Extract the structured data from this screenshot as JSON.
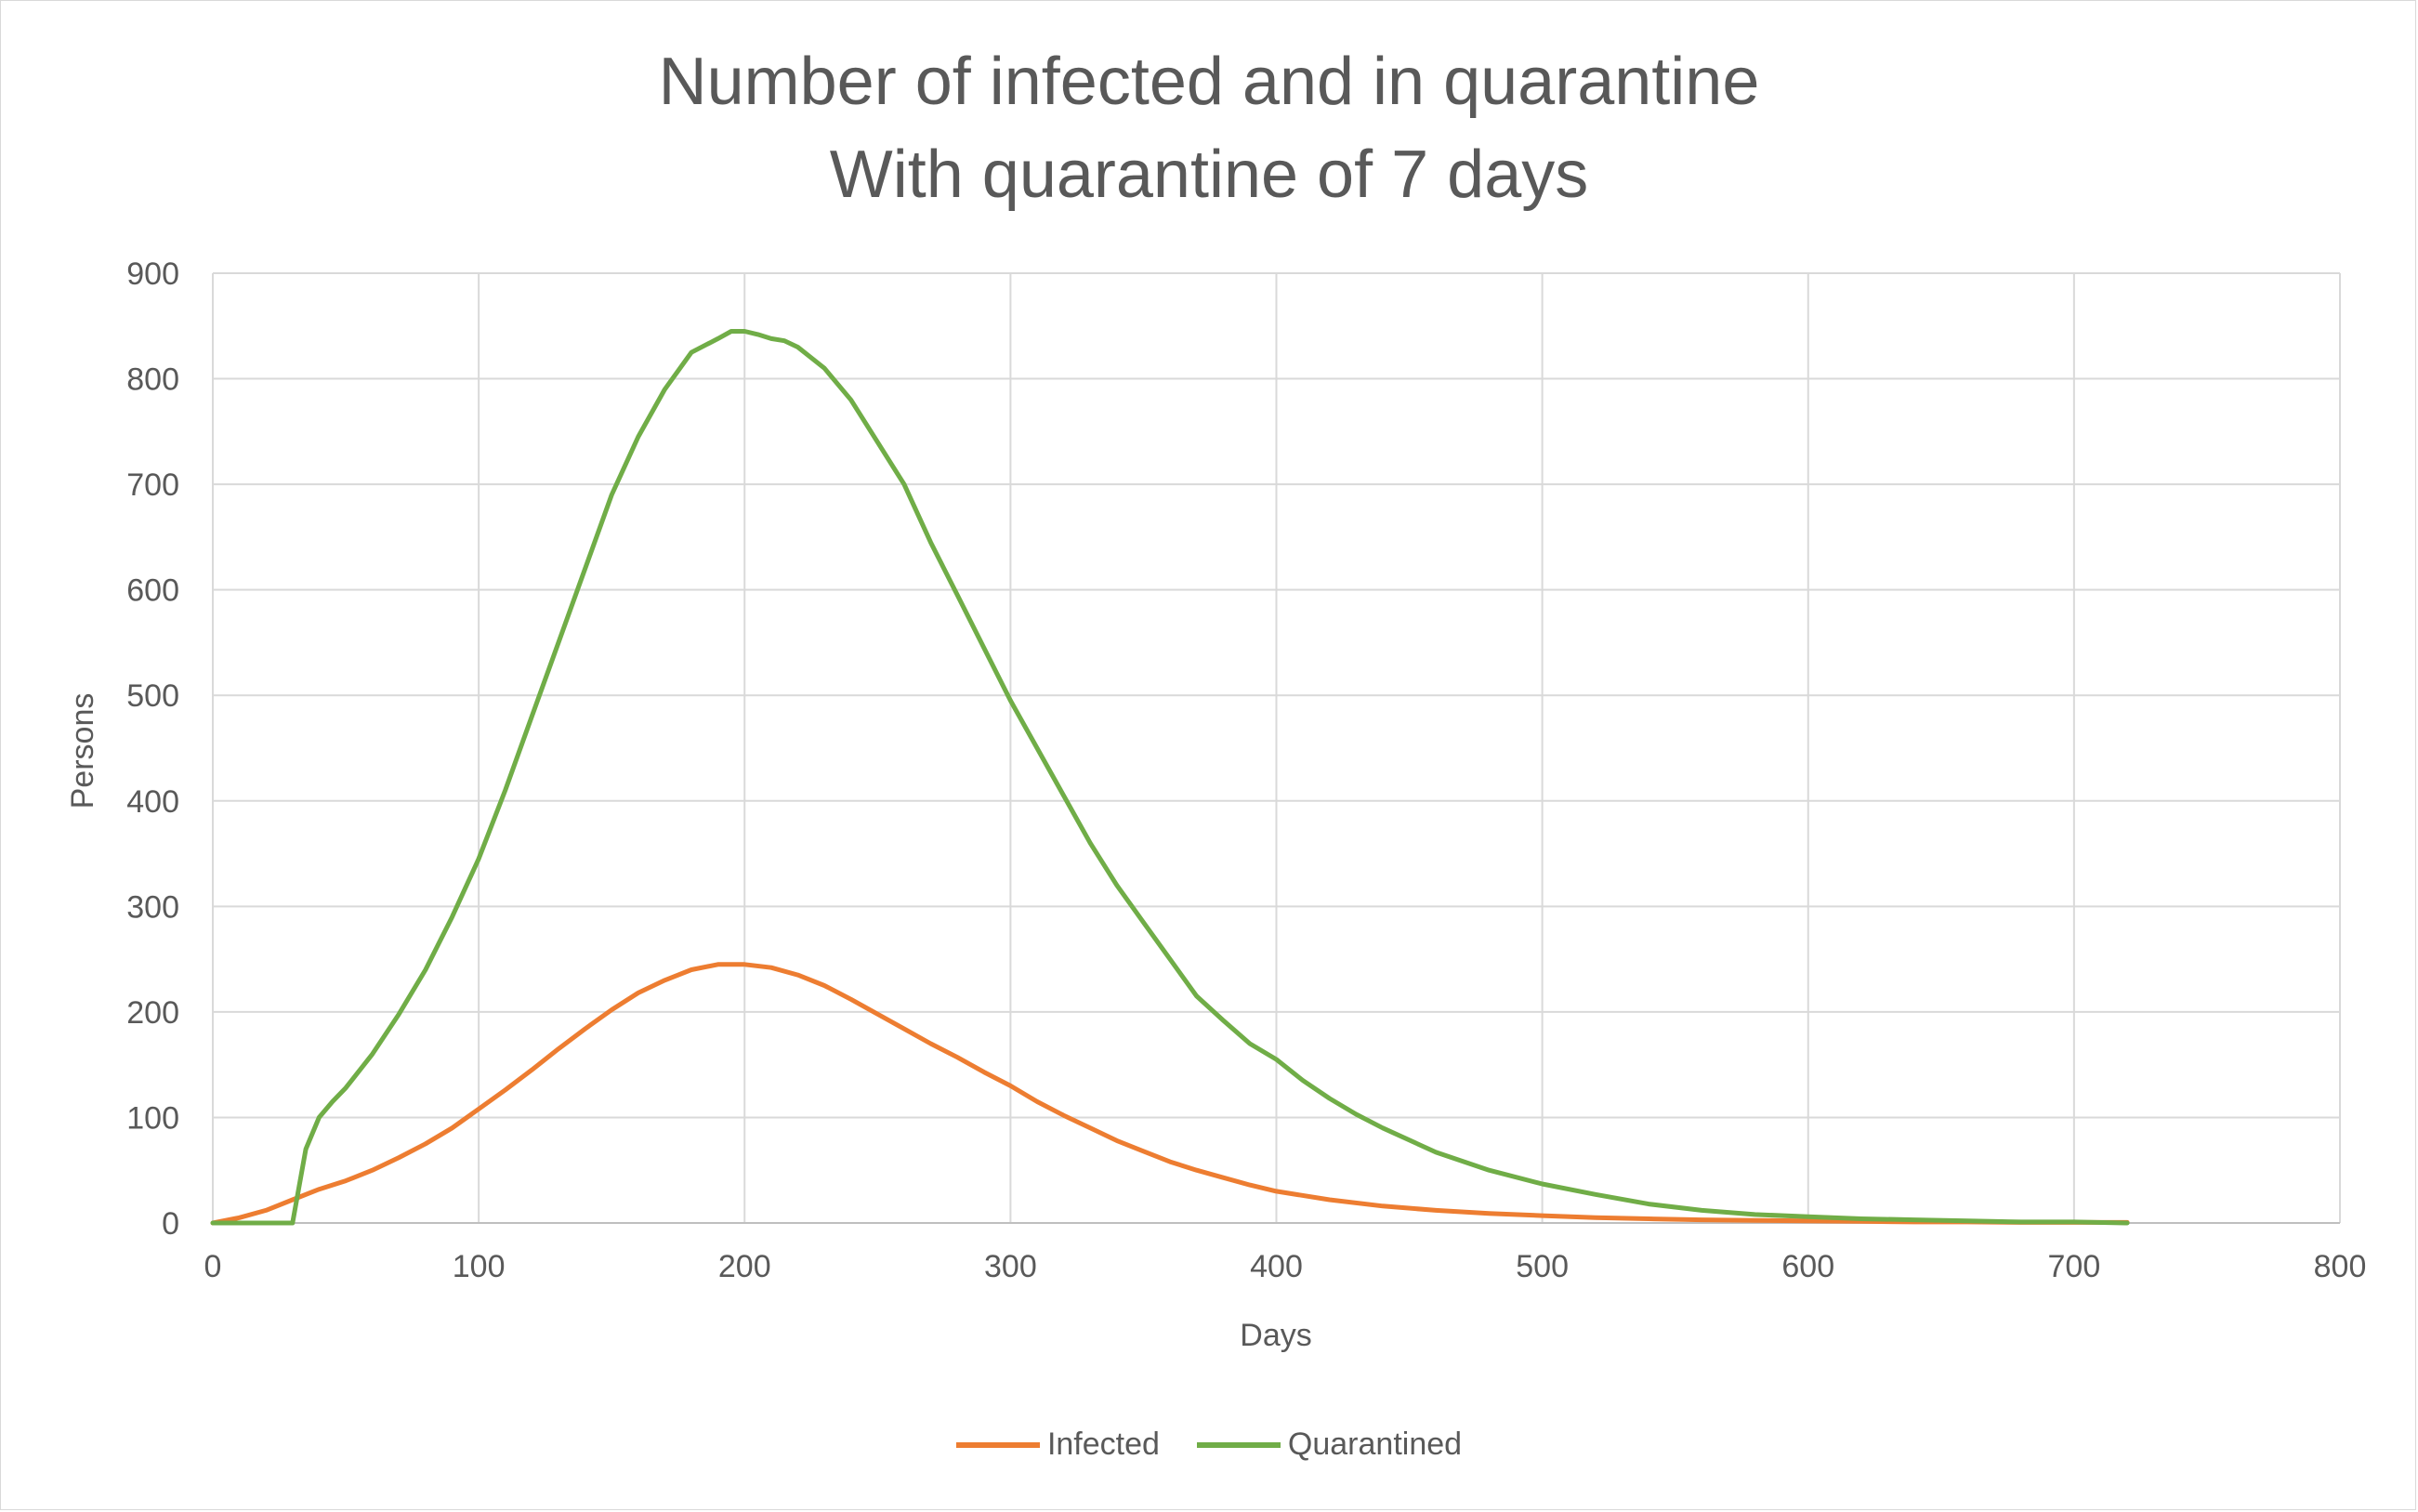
{
  "chart_data": {
    "type": "line",
    "title_lines": [
      "Number of infected and in quarantine",
      "With quarantine of 7 days"
    ],
    "xlabel": "Days",
    "ylabel": "Persons",
    "xlim": [
      0,
      800
    ],
    "ylim": [
      0,
      900
    ],
    "x_ticks": [
      0,
      100,
      200,
      300,
      400,
      500,
      600,
      700,
      800
    ],
    "y_ticks": [
      0,
      100,
      200,
      300,
      400,
      500,
      600,
      700,
      800,
      900
    ],
    "grid": true,
    "legend_position": "bottom",
    "series": [
      {
        "name": "Infected",
        "color": "#ED7D31",
        "x": [
          0,
          10,
          20,
          30,
          40,
          50,
          60,
          70,
          80,
          90,
          100,
          110,
          120,
          130,
          140,
          150,
          160,
          170,
          180,
          190,
          200,
          210,
          220,
          230,
          240,
          250,
          260,
          270,
          280,
          290,
          300,
          310,
          320,
          330,
          340,
          350,
          360,
          370,
          380,
          390,
          400,
          420,
          440,
          460,
          480,
          500,
          520,
          540,
          560,
          580,
          600,
          620,
          640,
          660,
          680,
          700,
          720
        ],
        "y": [
          0,
          5,
          12,
          22,
          32,
          40,
          50,
          62,
          75,
          90,
          108,
          126,
          145,
          165,
          184,
          202,
          218,
          230,
          240,
          245,
          245,
          242,
          235,
          225,
          212,
          198,
          184,
          170,
          157,
          143,
          130,
          115,
          102,
          90,
          78,
          68,
          58,
          50,
          43,
          36,
          30,
          22,
          16,
          12,
          9,
          7,
          5,
          4,
          3,
          2.5,
          2,
          1.5,
          1,
          1,
          0.5,
          0.5,
          0.5
        ]
      },
      {
        "name": "Quarantined",
        "color": "#70AD47",
        "x": [
          0,
          10,
          20,
          30,
          35,
          40,
          45,
          50,
          60,
          70,
          80,
          90,
          100,
          110,
          120,
          130,
          140,
          150,
          160,
          170,
          180,
          190,
          195,
          200,
          205,
          210,
          215,
          220,
          230,
          240,
          250,
          260,
          270,
          280,
          290,
          300,
          310,
          320,
          330,
          340,
          350,
          360,
          370,
          380,
          390,
          400,
          410,
          420,
          430,
          440,
          460,
          480,
          500,
          520,
          540,
          560,
          580,
          600,
          620,
          640,
          660,
          680,
          700,
          720
        ],
        "y": [
          0,
          0,
          0,
          0,
          70,
          100,
          115,
          128,
          160,
          198,
          240,
          290,
          345,
          410,
          480,
          550,
          620,
          690,
          745,
          790,
          825,
          838,
          845,
          845,
          842,
          838,
          836,
          830,
          810,
          780,
          740,
          700,
          645,
          595,
          545,
          495,
          450,
          405,
          360,
          320,
          285,
          250,
          215,
          192,
          170,
          155,
          135,
          118,
          103,
          90,
          67,
          50,
          37,
          27,
          18,
          12,
          8,
          6,
          4,
          3,
          2,
          1,
          1,
          0
        ]
      }
    ]
  }
}
